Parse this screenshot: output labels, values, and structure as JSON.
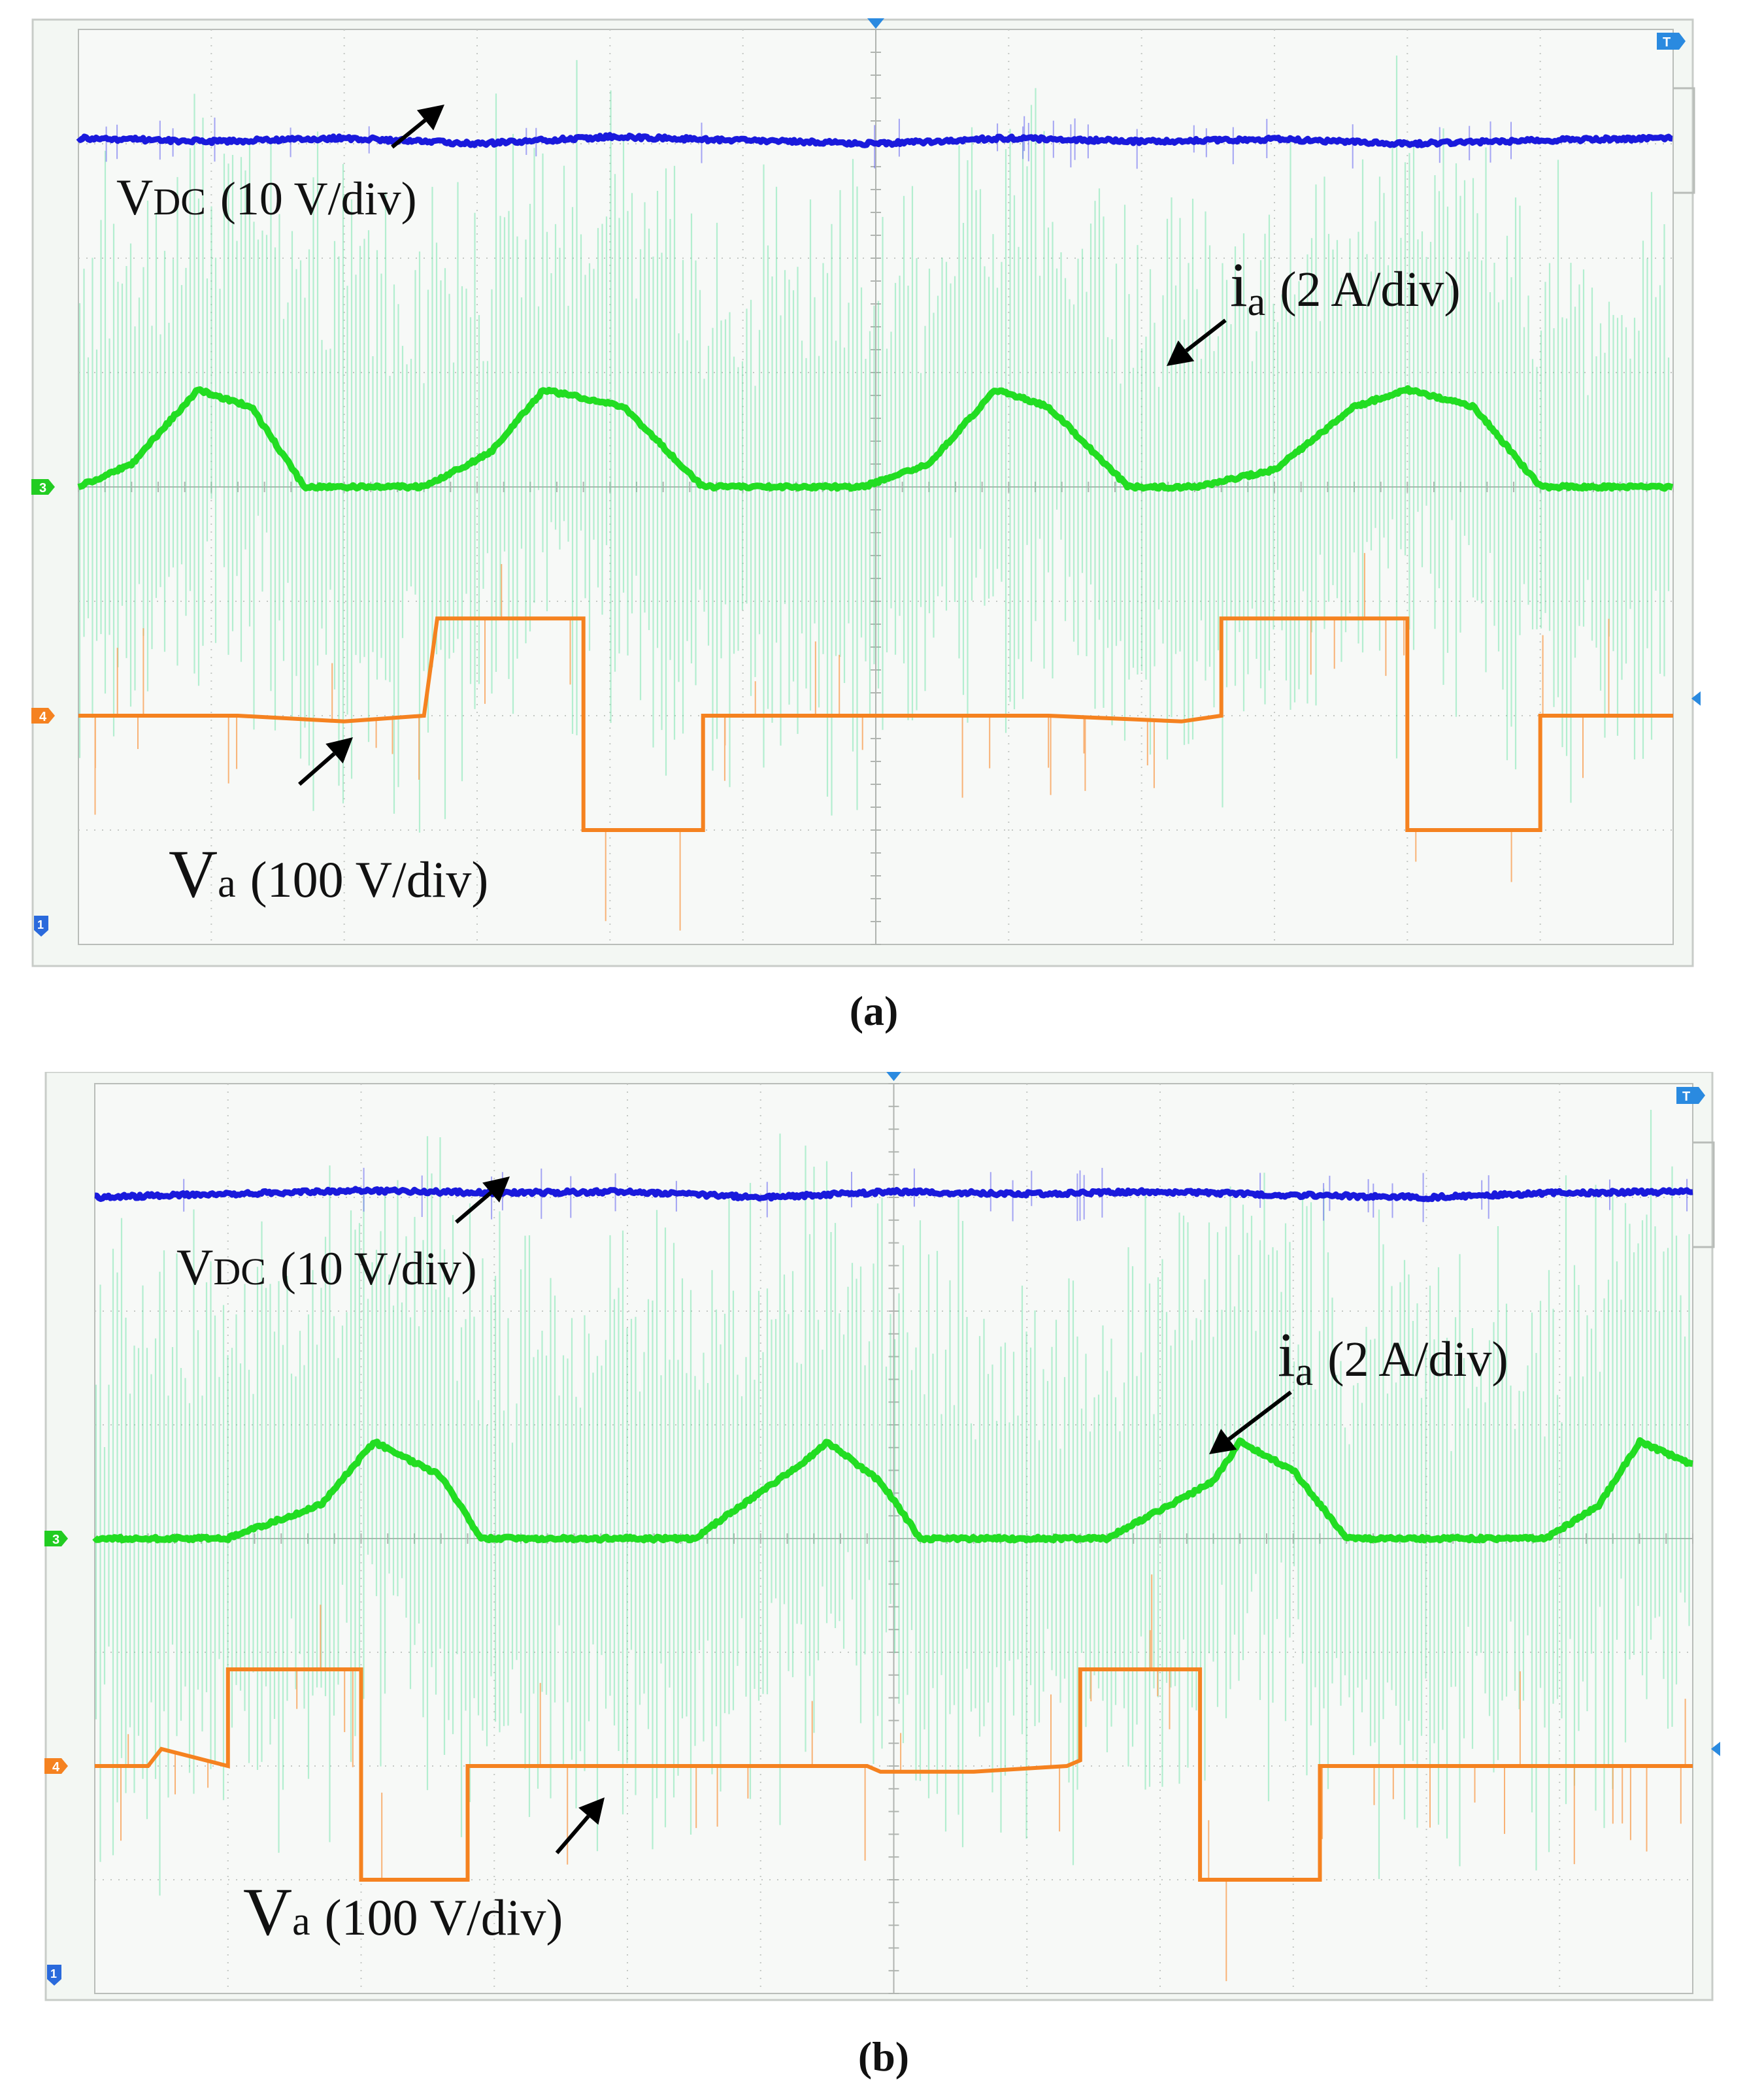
{
  "chart_data": [
    {
      "type": "line",
      "panel_label": "(a)",
      "divisions": {
        "x": 12,
        "y": 8
      },
      "annotations": {
        "vdc": {
          "main": "V",
          "sub": "DC",
          "scale": "(10 V/div)"
        },
        "ia": {
          "main": "i",
          "sub": "a",
          "scale": "(2 A/div)"
        },
        "va": {
          "main": "V",
          "sub": "a",
          "scale": "(100 V/div)"
        }
      },
      "markers": {
        "ch3": "3",
        "ch4": "4",
        "ch1": "1",
        "trigger": "T"
      },
      "series": [
        {
          "name": "VDC",
          "unit": "div",
          "color": "#1a1adc",
          "x": [
            0,
            1,
            2,
            3,
            4,
            5,
            6,
            7,
            8,
            9,
            10,
            11,
            12
          ],
          "values": [
            7.05,
            7.02,
            7.05,
            7.0,
            7.06,
            7.03,
            7.0,
            7.05,
            7.02,
            7.04,
            7.0,
            7.03,
            7.05
          ]
        },
        {
          "name": "ia",
          "unit": "div",
          "color": "#22dd22",
          "x": [
            0,
            0.4,
            0.9,
            1.3,
            1.7,
            2.2,
            2.6,
            3.1,
            3.5,
            4.1,
            4.7,
            5.3,
            5.9,
            6.4,
            6.9,
            7.3,
            7.9,
            8.4,
            9.0,
            9.6,
            10.0,
            10.5,
            11.0,
            11.4,
            12.0
          ],
          "values": [
            4.0,
            4.2,
            4.85,
            4.7,
            4.0,
            4.0,
            4.0,
            4.3,
            4.85,
            4.7,
            4.0,
            4.0,
            4.0,
            4.2,
            4.85,
            4.7,
            4.0,
            4.0,
            4.15,
            4.7,
            4.85,
            4.7,
            4.0,
            4.0,
            4.0
          ]
        },
        {
          "name": "Va",
          "unit": "div",
          "color": "#f58220",
          "x": [
            0,
            1.2,
            2.0,
            2.6,
            2.7,
            3.8,
            3.8,
            4.7,
            4.7,
            7.3,
            8.3,
            8.6,
            8.6,
            10.0,
            10.0,
            11.0,
            11.0,
            12.0
          ],
          "values": [
            2.0,
            2.0,
            1.95,
            2.0,
            2.85,
            2.85,
            1.0,
            1.0,
            2.0,
            2.0,
            1.95,
            2.0,
            2.85,
            2.85,
            1.0,
            1.0,
            2.0,
            2.0
          ]
        }
      ]
    },
    {
      "type": "line",
      "panel_label": "(b)",
      "divisions": {
        "x": 12,
        "y": 8
      },
      "annotations": {
        "vdc": {
          "main": "V",
          "sub": "DC",
          "scale": "(10 V/div)"
        },
        "ia": {
          "main": "i",
          "sub": "a",
          "scale": "(2 A/div)"
        },
        "va": {
          "main": "V",
          "sub": "a",
          "scale": "(100 V/div)"
        }
      },
      "markers": {
        "ch3": "3",
        "ch4": "4",
        "ch1": "1",
        "trigger": "T"
      },
      "series": [
        {
          "name": "VDC",
          "unit": "div",
          "color": "#1a1adc",
          "x": [
            0,
            1,
            2,
            3,
            4,
            5,
            6,
            7,
            8,
            9,
            10,
            11,
            12
          ],
          "values": [
            7.0,
            7.03,
            7.06,
            7.04,
            7.05,
            7.0,
            7.05,
            7.03,
            7.05,
            7.02,
            7.0,
            7.04,
            7.05
          ]
        },
        {
          "name": "ia",
          "unit": "div",
          "color": "#22dd22",
          "x": [
            0,
            1.0,
            1.7,
            2.1,
            2.6,
            2.9,
            4.5,
            5.3,
            5.5,
            5.9,
            6.2,
            7.6,
            8.4,
            8.6,
            9.0,
            9.4,
            10.9,
            11.3,
            11.6,
            12.0
          ],
          "values": [
            4.0,
            4.0,
            4.3,
            4.85,
            4.55,
            4.0,
            4.0,
            4.65,
            4.85,
            4.5,
            4.0,
            4.0,
            4.5,
            4.85,
            4.6,
            4.0,
            4.0,
            4.3,
            4.85,
            4.65
          ],
          "annotation_point": {
            "x": 8.5,
            "value": 4.85
          }
        },
        {
          "name": "Va",
          "unit": "div",
          "color": "#f58220",
          "x": [
            0,
            0.4,
            0.5,
            1.0,
            1.0,
            2.0,
            2.0,
            2.8,
            2.8,
            5.8,
            5.9,
            6.6,
            7.3,
            7.4,
            7.4,
            8.3,
            8.3,
            9.2,
            9.2,
            12.0
          ],
          "values": [
            2.0,
            2.0,
            2.15,
            2.0,
            2.85,
            2.85,
            1.0,
            1.0,
            2.0,
            2.0,
            1.95,
            1.95,
            2.0,
            2.05,
            2.85,
            2.85,
            1.0,
            1.0,
            2.0,
            2.0
          ]
        }
      ]
    }
  ]
}
